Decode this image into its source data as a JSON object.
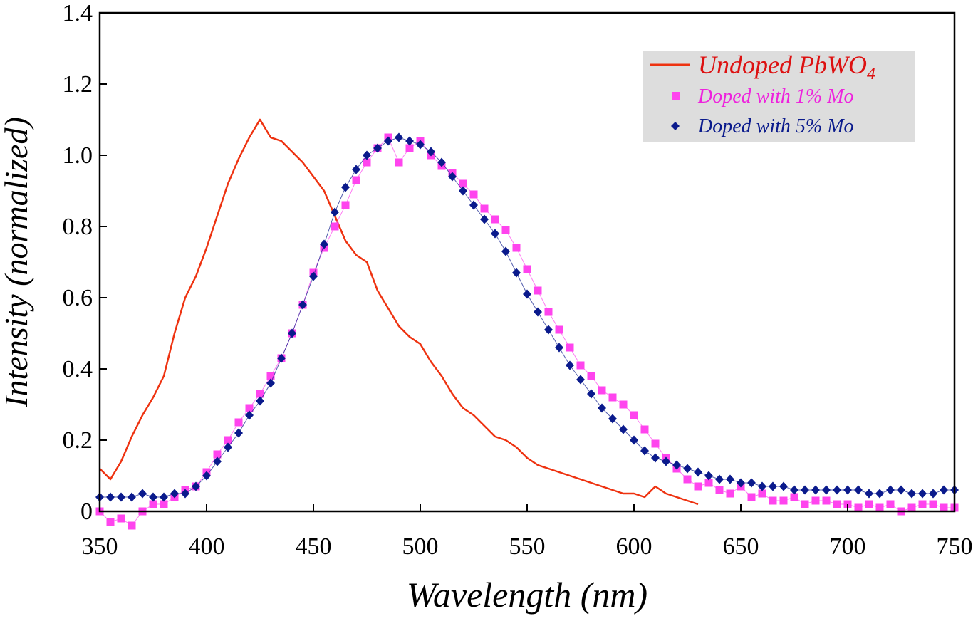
{
  "chart_data": {
    "type": "scatter",
    "title": "",
    "xlabel": "Wavelength (nm)",
    "ylabel": "Intensity (normalized)",
    "xlim": [
      350,
      750
    ],
    "ylim": [
      0,
      1.4
    ],
    "xticks": [
      "350",
      "400",
      "450",
      "500",
      "550",
      "600",
      "650",
      "700",
      "750"
    ],
    "yticks": [
      "0",
      "0.2",
      "0.4",
      "0.6",
      "0.8",
      "1.0",
      "1.2",
      "1.4"
    ],
    "grid": false,
    "legend": {
      "placement": "top-right"
    },
    "series": [
      {
        "name": "Undoped PbWO",
        "name_subscript": "4",
        "style": "line",
        "color": "#ee3311",
        "x": [
          350,
          355,
          360,
          365,
          370,
          375,
          380,
          385,
          390,
          395,
          400,
          405,
          410,
          415,
          420,
          425,
          430,
          435,
          440,
          445,
          450,
          455,
          460,
          465,
          470,
          475,
          480,
          485,
          490,
          495,
          500,
          505,
          510,
          515,
          520,
          525,
          530,
          535,
          540,
          545,
          550,
          555,
          560,
          565,
          570,
          575,
          580,
          585,
          590,
          595,
          600,
          605,
          610,
          615,
          620,
          625,
          630
        ],
        "y": [
          0.12,
          0.09,
          0.14,
          0.21,
          0.27,
          0.32,
          0.38,
          0.5,
          0.6,
          0.66,
          0.74,
          0.83,
          0.92,
          0.99,
          1.05,
          1.1,
          1.05,
          1.04,
          1.01,
          0.98,
          0.94,
          0.9,
          0.83,
          0.76,
          0.72,
          0.7,
          0.62,
          0.57,
          0.52,
          0.49,
          0.47,
          0.42,
          0.38,
          0.33,
          0.29,
          0.27,
          0.24,
          0.21,
          0.2,
          0.18,
          0.15,
          0.13,
          0.12,
          0.11,
          0.1,
          0.09,
          0.08,
          0.07,
          0.06,
          0.05,
          0.05,
          0.04,
          0.07,
          0.05,
          0.04,
          0.03,
          0.02
        ]
      },
      {
        "name": "Doped with 1% Mo",
        "style": "markers-square",
        "color": "#ff44ee",
        "x": [
          350,
          355,
          360,
          365,
          370,
          375,
          380,
          385,
          390,
          395,
          400,
          405,
          410,
          415,
          420,
          425,
          430,
          435,
          440,
          445,
          450,
          455,
          460,
          465,
          470,
          475,
          480,
          485,
          490,
          495,
          500,
          505,
          510,
          515,
          520,
          525,
          530,
          535,
          540,
          545,
          550,
          555,
          560,
          565,
          570,
          575,
          580,
          585,
          590,
          595,
          600,
          605,
          610,
          615,
          620,
          625,
          630,
          635,
          640,
          645,
          650,
          655,
          660,
          665,
          670,
          675,
          680,
          685,
          690,
          695,
          700,
          705,
          710,
          715,
          720,
          725,
          730,
          735,
          740,
          745,
          750
        ],
        "y": [
          0.0,
          -0.03,
          -0.02,
          -0.04,
          0.0,
          0.02,
          0.02,
          0.04,
          0.06,
          0.07,
          0.11,
          0.16,
          0.2,
          0.25,
          0.29,
          0.33,
          0.38,
          0.43,
          0.5,
          0.58,
          0.67,
          0.74,
          0.8,
          0.86,
          0.93,
          0.98,
          1.02,
          1.05,
          0.98,
          1.02,
          1.04,
          1.0,
          0.97,
          0.95,
          0.92,
          0.89,
          0.85,
          0.82,
          0.79,
          0.74,
          0.68,
          0.62,
          0.56,
          0.51,
          0.46,
          0.41,
          0.38,
          0.34,
          0.32,
          0.3,
          0.27,
          0.23,
          0.19,
          0.15,
          0.12,
          0.09,
          0.07,
          0.08,
          0.06,
          0.05,
          0.07,
          0.04,
          0.05,
          0.03,
          0.03,
          0.04,
          0.02,
          0.03,
          0.03,
          0.02,
          0.02,
          0.01,
          0.02,
          0.01,
          0.02,
          0.0,
          0.01,
          0.02,
          0.02,
          0.01,
          0.01
        ]
      },
      {
        "name": "Doped with 5% Mo",
        "style": "markers-diamond",
        "color": "#0a1a8c",
        "x": [
          350,
          355,
          360,
          365,
          370,
          375,
          380,
          385,
          390,
          395,
          400,
          405,
          410,
          415,
          420,
          425,
          430,
          435,
          440,
          445,
          450,
          455,
          460,
          465,
          470,
          475,
          480,
          485,
          490,
          495,
          500,
          505,
          510,
          515,
          520,
          525,
          530,
          535,
          540,
          545,
          550,
          555,
          560,
          565,
          570,
          575,
          580,
          585,
          590,
          595,
          600,
          605,
          610,
          615,
          620,
          625,
          630,
          635,
          640,
          645,
          650,
          655,
          660,
          665,
          670,
          675,
          680,
          685,
          690,
          695,
          700,
          705,
          710,
          715,
          720,
          725,
          730,
          735,
          740,
          745,
          750
        ],
        "y": [
          0.04,
          0.04,
          0.04,
          0.04,
          0.05,
          0.04,
          0.04,
          0.05,
          0.05,
          0.07,
          0.1,
          0.14,
          0.18,
          0.22,
          0.27,
          0.31,
          0.36,
          0.43,
          0.5,
          0.58,
          0.66,
          0.75,
          0.84,
          0.91,
          0.96,
          1.0,
          1.02,
          1.04,
          1.05,
          1.04,
          1.03,
          1.01,
          0.98,
          0.94,
          0.9,
          0.86,
          0.82,
          0.78,
          0.73,
          0.67,
          0.61,
          0.56,
          0.51,
          0.46,
          0.41,
          0.37,
          0.33,
          0.29,
          0.26,
          0.23,
          0.2,
          0.17,
          0.15,
          0.14,
          0.13,
          0.12,
          0.11,
          0.1,
          0.09,
          0.09,
          0.08,
          0.08,
          0.07,
          0.07,
          0.07,
          0.06,
          0.06,
          0.06,
          0.06,
          0.06,
          0.06,
          0.06,
          0.05,
          0.05,
          0.06,
          0.06,
          0.05,
          0.05,
          0.05,
          0.06,
          0.06
        ]
      }
    ]
  }
}
